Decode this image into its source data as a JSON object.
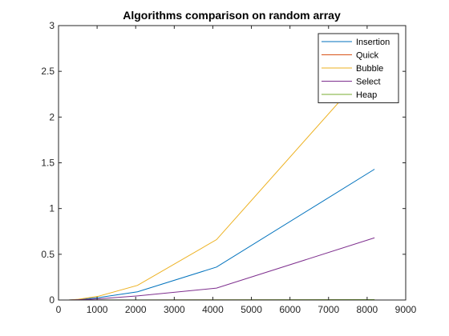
{
  "chart_data": {
    "type": "line",
    "title": "Algorithms comparison on random array",
    "xlabel": "",
    "ylabel": "",
    "xlim": [
      0,
      9000
    ],
    "ylim": [
      0,
      3
    ],
    "xticks": [
      0,
      1000,
      2000,
      3000,
      4000,
      5000,
      6000,
      7000,
      8000,
      9000
    ],
    "yticks": [
      0,
      0.5,
      1,
      1.5,
      2,
      2.5,
      3
    ],
    "ytick_labels": [
      "0",
      "0.5",
      "1",
      "1.5",
      "2",
      "2.5",
      "3"
    ],
    "grid": false,
    "legend_position": "top-right",
    "x": [
      256,
      512,
      1024,
      2048,
      4096,
      8192
    ],
    "series": [
      {
        "name": "Insertion",
        "color": "#0072BD",
        "values": [
          0.0,
          0.005,
          0.025,
          0.09,
          0.36,
          1.43
        ]
      },
      {
        "name": "Quick",
        "color": "#D95319",
        "values": [
          0.0,
          0.0,
          0.0,
          0.0005,
          0.001,
          0.002
        ]
      },
      {
        "name": "Bubble",
        "color": "#EDB120",
        "values": [
          0.0,
          0.008,
          0.04,
          0.16,
          0.66,
          2.6
        ]
      },
      {
        "name": "Select",
        "color": "#7E2F8E",
        "values": [
          0.0,
          0.003,
          0.012,
          0.045,
          0.13,
          0.68
        ]
      },
      {
        "name": "Heap",
        "color": "#77AC30",
        "values": [
          0.0,
          0.0002,
          0.0005,
          0.001,
          0.002,
          0.004
        ]
      }
    ]
  }
}
